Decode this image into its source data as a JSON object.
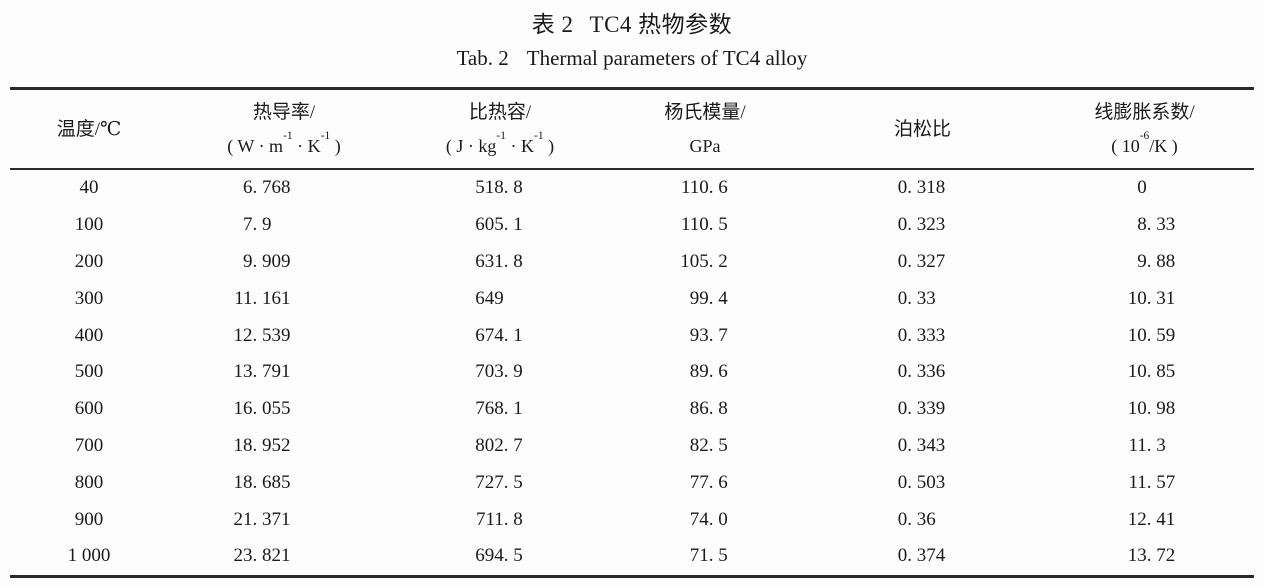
{
  "page": {
    "background": "#fdfdfd",
    "text_color": "#1a1a1a",
    "rule_color": "#2b2b2b"
  },
  "title": {
    "cn_label": "表 2",
    "cn_text": "TC4 热物参数",
    "en_label": "Tab. 2",
    "en_text": "Thermal parameters of TC4 alloy"
  },
  "table": {
    "columns": [
      {
        "key": "temperature",
        "line1": "温度/℃",
        "line2": null
      },
      {
        "key": "thermal-conductivity",
        "line1": "热导率/",
        "line2": [
          {
            "t": "( W · m"
          },
          {
            "sup": "-1"
          },
          {
            "t": " · K"
          },
          {
            "sup": "-1"
          },
          {
            "t": " )"
          }
        ]
      },
      {
        "key": "specific-heat",
        "line1": "比热容/",
        "line2": [
          {
            "t": "( J · kg"
          },
          {
            "sup": "-1"
          },
          {
            "t": " · K"
          },
          {
            "sup": "-1"
          },
          {
            "t": " )"
          }
        ]
      },
      {
        "key": "youngs-modulus",
        "line1": "杨氏模量/",
        "line2": [
          {
            "t": "GPa"
          }
        ]
      },
      {
        "key": "poissons-ratio",
        "line1": "泊松比",
        "line2": null
      },
      {
        "key": "linear-expansion",
        "line1": "线膨胀系数/",
        "line2": [
          {
            "t": "( 10"
          },
          {
            "sup": "-6"
          },
          {
            "t": "/K )"
          }
        ]
      }
    ],
    "rows": [
      [
        "40",
        "6. 768",
        "518. 8",
        "110. 6",
        "0. 318",
        "0"
      ],
      [
        "100",
        "7. 9",
        "605. 1",
        "110. 5",
        "0. 323",
        "8. 33"
      ],
      [
        "200",
        "9. 909",
        "631. 8",
        "105. 2",
        "0. 327",
        "9. 88"
      ],
      [
        "300",
        "11. 161",
        "649",
        "99. 4",
        "0. 33",
        "10. 31"
      ],
      [
        "400",
        "12. 539",
        "674. 1",
        "93. 7",
        "0. 333",
        "10. 59"
      ],
      [
        "500",
        "13. 791",
        "703. 9",
        "89. 6",
        "0. 336",
        "10. 85"
      ],
      [
        "600",
        "16. 055",
        "768. 1",
        "86. 8",
        "0. 339",
        "10. 98"
      ],
      [
        "700",
        "18. 952",
        "802. 7",
        "82. 5",
        "0. 343",
        "11. 3"
      ],
      [
        "800",
        "18. 685",
        "727. 5",
        "77. 6",
        "0. 503",
        "11. 57"
      ],
      [
        "900",
        "21. 371",
        "711. 8",
        "74. 0",
        "0. 36",
        "12. 41"
      ],
      [
        "1 000",
        "23. 821",
        "694. 5",
        "71. 5",
        "0. 374",
        "13. 72"
      ]
    ]
  }
}
